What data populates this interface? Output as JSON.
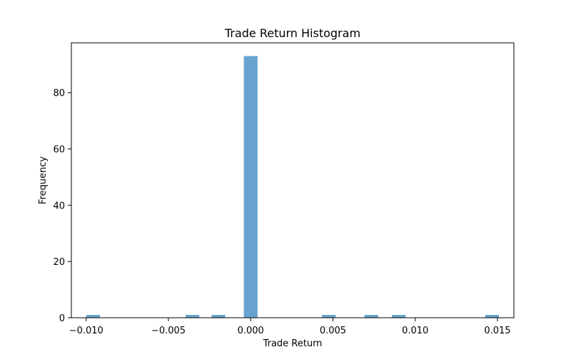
{
  "chart_data": {
    "type": "bar",
    "title": "Trade Return Histogram",
    "xlabel": "Trade Return",
    "ylabel": "Frequency",
    "xlim": [
      -0.0109,
      0.016
    ],
    "ylim": [
      0,
      97.7
    ],
    "grid": false,
    "bar_color": "#66a3cf",
    "bin_width": 0.000833,
    "x_ticks": [
      {
        "value": -0.01,
        "label": "−0.010"
      },
      {
        "value": -0.005,
        "label": "−0.005"
      },
      {
        "value": 0.0,
        "label": "0.000"
      },
      {
        "value": 0.005,
        "label": "0.005"
      },
      {
        "value": 0.01,
        "label": "0.010"
      },
      {
        "value": 0.015,
        "label": "0.015"
      }
    ],
    "y_ticks": [
      {
        "value": 0,
        "label": "0"
      },
      {
        "value": 20,
        "label": "20"
      },
      {
        "value": 40,
        "label": "40"
      },
      {
        "value": 60,
        "label": "60"
      },
      {
        "value": 80,
        "label": "80"
      }
    ],
    "bins": [
      {
        "x": -0.00958,
        "count": 1
      },
      {
        "x": -0.00354,
        "count": 1
      },
      {
        "x": -0.00196,
        "count": 1
      },
      {
        "x": 0.0,
        "count": 93
      },
      {
        "x": 0.00475,
        "count": 1
      },
      {
        "x": 0.00733,
        "count": 1
      },
      {
        "x": 0.009,
        "count": 1
      },
      {
        "x": 0.01467,
        "count": 1
      }
    ]
  }
}
